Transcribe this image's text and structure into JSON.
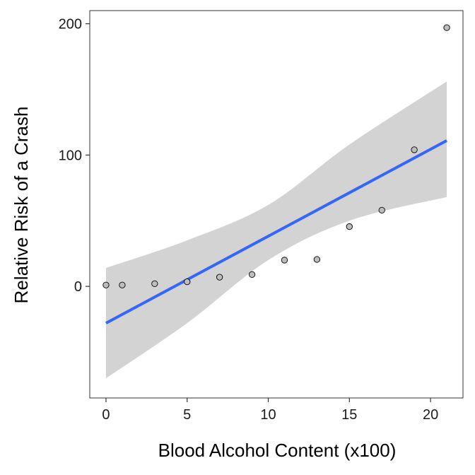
{
  "chart_data": {
    "type": "scatter",
    "xlabel": "Blood Alcohol Content (x100)",
    "ylabel": "Relative Risk of a Crash",
    "xlim": [
      -1,
      22
    ],
    "ylim": [
      -85,
      210
    ],
    "x_ticks": [
      0,
      5,
      10,
      15,
      20
    ],
    "y_ticks": [
      0,
      100,
      200
    ],
    "x_tick_labels": [
      "0",
      "5",
      "10",
      "15",
      "20"
    ],
    "y_tick_labels": [
      "0",
      "100",
      "200"
    ],
    "grid": false,
    "series": [
      {
        "points": [
          {
            "x": 0,
            "y": 1
          },
          {
            "x": 1,
            "y": 1
          },
          {
            "x": 3,
            "y": 2
          },
          {
            "x": 5,
            "y": 3.5
          },
          {
            "x": 7,
            "y": 7
          },
          {
            "x": 9,
            "y": 9
          },
          {
            "x": 11,
            "y": 20
          },
          {
            "x": 13,
            "y": 20.5
          },
          {
            "x": 15,
            "y": 45.5
          },
          {
            "x": 17,
            "y": 58
          },
          {
            "x": 19,
            "y": 104
          },
          {
            "x": 21,
            "y": 197
          }
        ]
      }
    ],
    "fit": {
      "method": "linear",
      "start": {
        "x": 0,
        "y": -28
      },
      "end": {
        "x": 21,
        "y": 111
      },
      "confidence_band": [
        {
          "x": 0,
          "lower": -70,
          "upper": 14
        },
        {
          "x": 5,
          "lower": -28,
          "upper": 35
        },
        {
          "x": 10,
          "lower": 20,
          "upper": 62
        },
        {
          "x": 15,
          "lower": 50,
          "upper": 108
        },
        {
          "x": 21,
          "lower": 68,
          "upper": 156
        }
      ]
    },
    "colors": {
      "fit_line": "#3366ff",
      "band": "#d3d3d3",
      "points": "#bdbdbd"
    }
  }
}
